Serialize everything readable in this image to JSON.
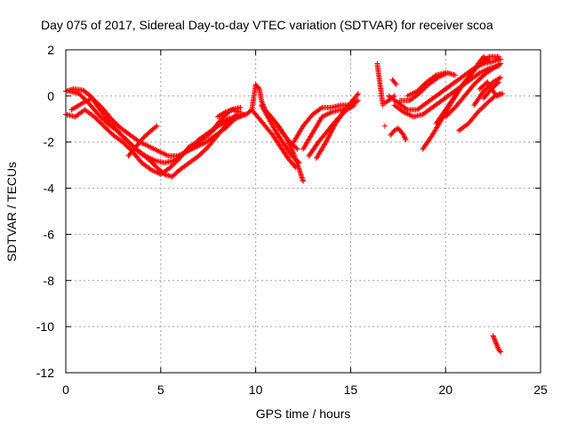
{
  "chart_data": {
    "type": "scatter",
    "title": "Day 075 of 2017, Sidereal Day-to-day VTEC variation (SDTVAR) for receiver scoa",
    "xlabel": "GPS time / hours",
    "ylabel": "SDTVAR / TECUs",
    "xlim": [
      0,
      25
    ],
    "ylim": [
      -12,
      2
    ],
    "xticks": [
      0,
      5,
      10,
      15,
      20,
      25
    ],
    "yticks": [
      -12,
      -10,
      -8,
      -6,
      -4,
      -2,
      0,
      2
    ],
    "grid": true,
    "marker": "+",
    "color": "#ff0000",
    "series": [
      {
        "name": "sdtvar",
        "tracks": [
          [
            [
              0.0,
              0.2
            ],
            [
              0.4,
              0.3
            ],
            [
              0.9,
              0.25
            ],
            [
              1.3,
              0.0
            ],
            [
              1.8,
              -0.6
            ],
            [
              2.3,
              -1.1
            ],
            [
              2.8,
              -1.6
            ],
            [
              3.3,
              -2.0
            ],
            [
              3.8,
              -2.4
            ],
            [
              4.3,
              -2.7
            ],
            [
              4.8,
              -3.1
            ],
            [
              5.2,
              -3.4
            ],
            [
              5.6,
              -3.5
            ],
            [
              6.0,
              -3.2
            ],
            [
              6.5,
              -2.9
            ],
            [
              7.0,
              -2.6
            ],
            [
              7.5,
              -2.2
            ],
            [
              8.0,
              -1.7
            ],
            [
              8.5,
              -1.2
            ],
            [
              9.0,
              -0.8
            ]
          ],
          [
            [
              0.0,
              -0.8
            ],
            [
              0.5,
              -0.9
            ],
            [
              1.0,
              -0.6
            ],
            [
              1.5,
              -0.9
            ],
            [
              2.0,
              -1.3
            ],
            [
              2.5,
              -1.7
            ],
            [
              3.0,
              -2.0
            ],
            [
              3.5,
              -2.4
            ],
            [
              4.0,
              -2.9
            ],
            [
              4.5,
              -3.2
            ],
            [
              5.0,
              -3.4
            ],
            [
              5.5,
              -3.1
            ],
            [
              6.0,
              -2.7
            ],
            [
              6.5,
              -2.2
            ],
            [
              7.0,
              -2.0
            ],
            [
              7.5,
              -1.7
            ],
            [
              8.0,
              -1.3
            ],
            [
              8.5,
              -1.0
            ],
            [
              9.0,
              -0.9
            ]
          ],
          [
            [
              0.2,
              0.2
            ],
            [
              0.7,
              0.1
            ],
            [
              1.2,
              -0.3
            ],
            [
              1.7,
              -0.8
            ],
            [
              2.2,
              -1.2
            ],
            [
              2.7,
              -1.5
            ],
            [
              3.2,
              -1.9
            ],
            [
              3.7,
              -2.3
            ],
            [
              4.2,
              -2.6
            ],
            [
              4.7,
              -2.8
            ],
            [
              5.2,
              -2.9
            ],
            [
              5.7,
              -2.8
            ],
            [
              6.2,
              -2.5
            ],
            [
              6.7,
              -2.1
            ],
            [
              7.2,
              -1.9
            ],
            [
              7.7,
              -1.5
            ],
            [
              8.2,
              -1.0
            ],
            [
              8.7,
              -0.6
            ],
            [
              9.2,
              -0.5
            ]
          ],
          [
            [
              0.3,
              -0.6
            ],
            [
              0.9,
              -0.3
            ],
            [
              1.4,
              -0.1
            ],
            [
              1.9,
              -0.5
            ],
            [
              2.4,
              -1.0
            ],
            [
              2.9,
              -1.4
            ],
            [
              3.4,
              -1.7
            ],
            [
              3.9,
              -2.0
            ],
            [
              4.4,
              -2.2
            ],
            [
              4.9,
              -2.4
            ],
            [
              5.4,
              -2.6
            ],
            [
              5.9,
              -2.6
            ],
            [
              6.4,
              -2.4
            ],
            [
              6.9,
              -2.2
            ],
            [
              7.4,
              -2.0
            ],
            [
              7.9,
              -1.7
            ],
            [
              8.4,
              -1.4
            ],
            [
              8.9,
              -1.0
            ],
            [
              9.4,
              -0.8
            ]
          ],
          [
            [
              3.3,
              -2.6
            ],
            [
              3.7,
              -2.2
            ],
            [
              4.1,
              -1.8
            ],
            [
              4.5,
              -1.5
            ],
            [
              4.8,
              -1.3
            ]
          ],
          [
            [
              6.0,
              -2.6
            ],
            [
              6.5,
              -2.3
            ],
            [
              7.0,
              -1.9
            ],
            [
              7.5,
              -1.6
            ],
            [
              8.0,
              -1.3
            ],
            [
              8.5,
              -1.1
            ],
            [
              9.0,
              -0.9
            ],
            [
              9.5,
              -0.8
            ]
          ],
          [
            [
              8.0,
              -0.9
            ],
            [
              8.4,
              -0.7
            ],
            [
              8.8,
              -0.6
            ],
            [
              9.2,
              -0.7
            ]
          ],
          [
            [
              9.5,
              -0.8
            ],
            [
              9.8,
              -0.6
            ],
            [
              10.0,
              0.5
            ],
            [
              10.2,
              0.3
            ],
            [
              10.3,
              -0.2
            ],
            [
              10.5,
              -0.6
            ],
            [
              10.8,
              -0.9
            ],
            [
              11.2,
              -1.3
            ],
            [
              11.6,
              -1.8
            ],
            [
              12.0,
              -2.5
            ],
            [
              12.3,
              -3.2
            ],
            [
              12.5,
              -3.7
            ]
          ],
          [
            [
              9.8,
              -0.6
            ],
            [
              10.1,
              -0.9
            ],
            [
              10.5,
              -1.3
            ],
            [
              10.9,
              -1.7
            ],
            [
              11.3,
              -2.2
            ],
            [
              11.7,
              -2.7
            ],
            [
              12.1,
              -3.1
            ]
          ],
          [
            [
              10.3,
              -0.4
            ],
            [
              10.7,
              -1.0
            ],
            [
              11.1,
              -1.6
            ],
            [
              11.5,
              -2.1
            ],
            [
              11.9,
              -2.6
            ],
            [
              12.3,
              -2.9
            ]
          ],
          [
            [
              10.6,
              -0.7
            ],
            [
              11.0,
              -1.1
            ],
            [
              11.4,
              -1.6
            ],
            [
              11.8,
              -2.0
            ],
            [
              12.2,
              -2.3
            ]
          ],
          [
            [
              12.0,
              -2.0
            ],
            [
              12.5,
              -1.3
            ],
            [
              13.0,
              -0.8
            ],
            [
              13.5,
              -0.5
            ],
            [
              14.0,
              -0.5
            ],
            [
              14.5,
              -0.4
            ],
            [
              15.0,
              -0.4
            ],
            [
              15.4,
              -0.2
            ]
          ],
          [
            [
              12.5,
              -2.3
            ],
            [
              13.0,
              -1.6
            ],
            [
              13.5,
              -0.9
            ],
            [
              14.0,
              -0.7
            ],
            [
              14.5,
              -0.6
            ],
            [
              15.0,
              -0.5
            ]
          ],
          [
            [
              13.2,
              -2.7
            ],
            [
              13.7,
              -2.0
            ],
            [
              14.2,
              -1.2
            ],
            [
              14.7,
              -0.6
            ],
            [
              15.2,
              -0.1
            ],
            [
              15.4,
              0.1
            ]
          ],
          [
            [
              12.8,
              -2.6
            ],
            [
              13.3,
              -2.0
            ],
            [
              13.8,
              -1.5
            ],
            [
              14.3,
              -1.0
            ],
            [
              14.8,
              -0.6
            ],
            [
              15.2,
              -0.4
            ]
          ],
          [
            [
              16.4,
              1.4
            ],
            [
              16.5,
              0.8
            ],
            [
              16.6,
              0.2
            ],
            [
              16.7,
              -0.4
            ]
          ],
          [
            [
              16.8,
              -0.3
            ],
            [
              17.0,
              -0.2
            ],
            [
              17.3,
              0.0
            ]
          ],
          [
            [
              16.8,
              -1.3
            ]
          ],
          [
            [
              17.1,
              -1.7
            ],
            [
              17.3,
              -1.5
            ],
            [
              17.5,
              -1.4
            ],
            [
              17.8,
              -1.7
            ],
            [
              17.9,
              -1.9
            ]
          ],
          [
            [
              17.2,
              0.7
            ],
            [
              17.4,
              0.5
            ]
          ],
          [
            [
              17.0,
              0.0
            ],
            [
              17.5,
              -0.3
            ],
            [
              18.0,
              -0.6
            ],
            [
              18.5,
              -0.6
            ],
            [
              19.0,
              -0.3
            ],
            [
              19.5,
              0.0
            ],
            [
              20.0,
              0.3
            ],
            [
              20.5,
              0.6
            ],
            [
              21.0,
              0.9
            ],
            [
              21.5,
              1.2
            ],
            [
              22.0,
              1.4
            ],
            [
              22.5,
              1.5
            ],
            [
              22.9,
              1.6
            ]
          ],
          [
            [
              17.3,
              -0.4
            ],
            [
              17.8,
              -0.7
            ],
            [
              18.3,
              -0.9
            ],
            [
              18.8,
              -0.8
            ],
            [
              19.3,
              -0.5
            ],
            [
              19.8,
              -0.2
            ],
            [
              20.3,
              0.1
            ],
            [
              20.8,
              0.4
            ],
            [
              21.3,
              0.7
            ],
            [
              21.8,
              1.0
            ],
            [
              22.3,
              1.2
            ],
            [
              22.8,
              1.3
            ]
          ],
          [
            [
              17.6,
              -0.2
            ],
            [
              18.1,
              -0.2
            ],
            [
              18.6,
              0.1
            ],
            [
              19.1,
              0.5
            ],
            [
              19.6,
              0.8
            ],
            [
              20.1,
              1.0
            ],
            [
              20.5,
              0.9
            ]
          ],
          [
            [
              18.0,
              0.0
            ],
            [
              18.5,
              0.2
            ],
            [
              19.0,
              0.6
            ],
            [
              19.5,
              0.9
            ],
            [
              20.0,
              1.0
            ]
          ],
          [
            [
              18.8,
              -2.3
            ],
            [
              19.3,
              -1.7
            ],
            [
              19.8,
              -1.0
            ],
            [
              20.3,
              -0.3
            ],
            [
              20.8,
              0.4
            ],
            [
              21.3,
              0.9
            ],
            [
              21.8,
              1.4
            ],
            [
              22.3,
              1.7
            ],
            [
              22.8,
              1.7
            ]
          ],
          [
            [
              19.5,
              -1.2
            ],
            [
              20.0,
              -0.6
            ],
            [
              20.5,
              0.0
            ],
            [
              21.0,
              0.6
            ],
            [
              21.5,
              1.1
            ],
            [
              21.8,
              1.5
            ],
            [
              22.0,
              1.7
            ],
            [
              22.3,
              1.5
            ]
          ],
          [
            [
              20.0,
              -0.9
            ],
            [
              20.5,
              -0.5
            ],
            [
              21.0,
              0.0
            ],
            [
              21.5,
              0.5
            ],
            [
              22.0,
              0.9
            ],
            [
              22.5,
              1.2
            ],
            [
              22.9,
              1.4
            ]
          ],
          [
            [
              20.7,
              -1.5
            ],
            [
              21.2,
              -1.2
            ],
            [
              21.7,
              -0.7
            ],
            [
              22.2,
              -0.3
            ],
            [
              22.6,
              0.0
            ],
            [
              22.9,
              0.1
            ]
          ],
          [
            [
              21.5,
              -0.4
            ],
            [
              22.0,
              0.2
            ],
            [
              22.5,
              0.6
            ],
            [
              22.9,
              0.8
            ]
          ],
          [
            [
              22.0,
              -0.1
            ],
            [
              22.4,
              0.3
            ],
            [
              22.8,
              0.6
            ]
          ],
          [
            [
              21.8,
              0.3
            ],
            [
              22.2,
              0.6
            ],
            [
              22.5,
              0.2
            ],
            [
              22.7,
              0.0
            ],
            [
              23.0,
              0.1
            ]
          ],
          [
            [
              22.5,
              -10.4
            ],
            [
              22.6,
              -10.6
            ],
            [
              22.7,
              -10.8
            ],
            [
              22.8,
              -11.0
            ],
            [
              22.9,
              -11.1
            ]
          ]
        ]
      }
    ]
  }
}
